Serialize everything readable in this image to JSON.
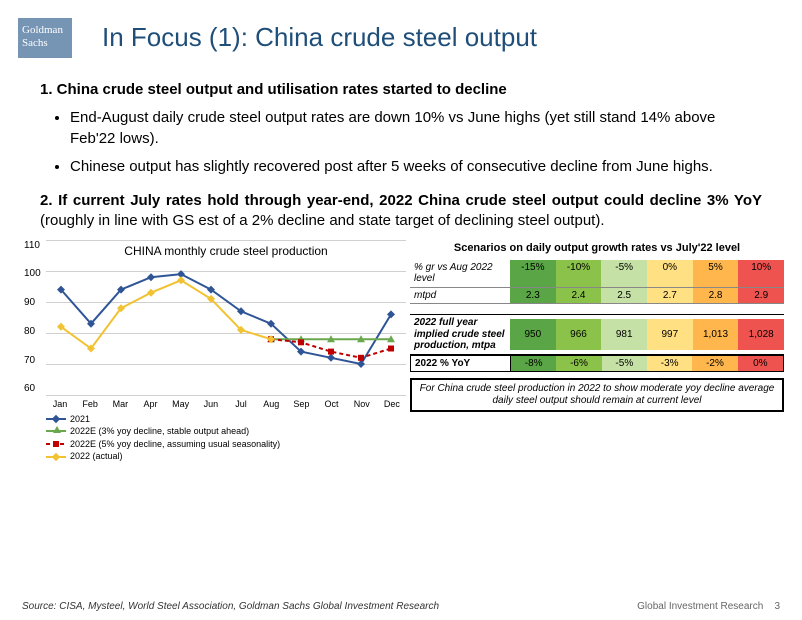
{
  "logo": {
    "line1": "Goldman",
    "line2": "Sachs"
  },
  "title": "In Focus (1): China crude steel output",
  "heading1": "1.  China crude steel output and utilisation rates started to decline",
  "bullet1": "End-August daily crude steel output rates are down 10% vs June highs (yet still stand 14% above Feb'22 lows).",
  "bullet2": "Chinese output has slightly recovered post after 5 weeks of consecutive decline from June highs.",
  "heading2_bold": "2.  If current July rates hold through year-end, 2022 China crude steel output could decline 3% YoY",
  "heading2_rest": " (roughly in line with GS est of a 2% decline and state target of declining steel output).",
  "chart": {
    "title": "CHINA monthly crude steel production",
    "ylim": [
      60,
      110
    ],
    "yticks": [
      60,
      70,
      80,
      90,
      100,
      110
    ],
    "months": [
      "Jan",
      "Feb",
      "Mar",
      "Apr",
      "May",
      "Jun",
      "Jul",
      "Aug",
      "Sep",
      "Oct",
      "Nov",
      "Dec"
    ],
    "series": [
      {
        "name": "2021",
        "color": "#2f5597",
        "marker": "diamond",
        "values": [
          94,
          83,
          94,
          98,
          99,
          94,
          87,
          83,
          74,
          72,
          70,
          86
        ]
      },
      {
        "name": "2022E (3% yoy decline, stable output ahead)",
        "color": "#6aa84f",
        "marker": "triangle",
        "values": [
          null,
          null,
          null,
          null,
          null,
          null,
          null,
          78,
          78,
          78,
          78,
          78
        ]
      },
      {
        "name": "2022E (5% yoy decline, assuming usual seasonality)",
        "color": "#c00000",
        "marker": "square",
        "dash": true,
        "values": [
          null,
          null,
          null,
          null,
          null,
          null,
          null,
          78,
          77,
          74,
          72,
          75
        ]
      },
      {
        "name": "2022 (actual)",
        "color": "#f1c232",
        "marker": "diamond",
        "values": [
          82,
          75,
          88,
          93,
          97,
          91,
          81,
          78,
          null,
          null,
          null,
          null
        ]
      }
    ]
  },
  "scenario": {
    "title": "Scenarios on daily output growth rates vs July'22 level",
    "row1_label": "% gr vs Aug 2022 level",
    "row2_label": "mtpd",
    "row3_label": "2022 full year implied crude steel production, mtpa",
    "row4_label": "2022 % YoY",
    "colors": [
      "#5aa646",
      "#8bc34a",
      "#c5e1a5",
      "#ffe082",
      "#ffb74d",
      "#ef5350"
    ],
    "row1": [
      "-15%",
      "-10%",
      "-5%",
      "0%",
      "5%",
      "10%"
    ],
    "row2": [
      "2.3",
      "2.4",
      "2.5",
      "2.7",
      "2.8",
      "2.9"
    ],
    "row3": [
      "950",
      "966",
      "981",
      "997",
      "1,013",
      "1,028"
    ],
    "row4": [
      "-8%",
      "-6%",
      "-5%",
      "-3%",
      "-2%",
      "0%"
    ],
    "note": "For China crude steel production in 2022 to show moderate yoy decline average daily steel output should remain at current level"
  },
  "source": "Source: CISA, Mysteel, World Steel Association, Goldman Sachs Global Investment Research",
  "footer": "Global Investment Research",
  "page": "3"
}
